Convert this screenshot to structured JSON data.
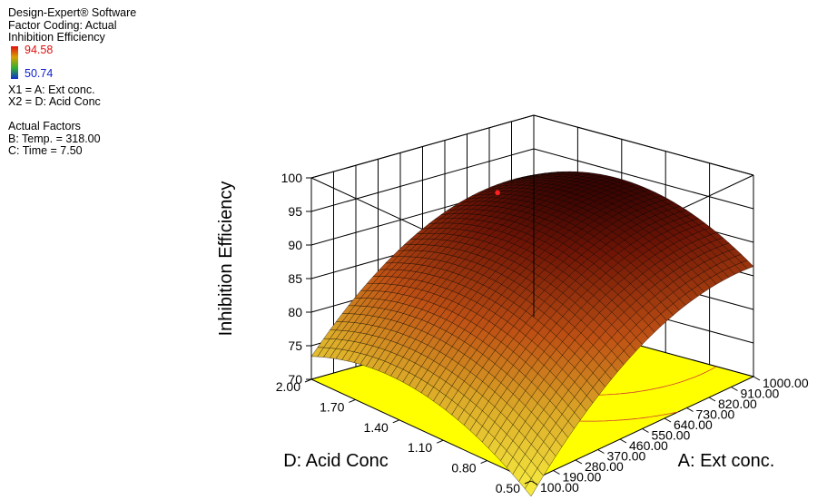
{
  "header": {
    "software": "Design-Expert® Software",
    "coding": "Factor Coding: Actual",
    "response": "Inhibition Efficiency"
  },
  "legend": {
    "max_label": "94.58",
    "min_label": "50.74",
    "colors": [
      "#e01010",
      "#d8a000",
      "#30b030",
      "#1030d0"
    ]
  },
  "factors": {
    "x1": "X1 = A: Ext conc.",
    "x2": "X2 = D: Acid Conc"
  },
  "actual": {
    "title": "Actual Factors",
    "b": "B: Temp. = 318.00",
    "c": "C: Time = 7.50"
  },
  "chart_data": {
    "type": "surface",
    "zlabel": "Inhibition Efficiency",
    "xlabel": "A: Ext conc.",
    "ylabel": "D: Acid Conc",
    "z_ticks": [
      "70",
      "75",
      "80",
      "85",
      "90",
      "95",
      "100"
    ],
    "x_ticks": [
      "100.00",
      "190.00",
      "280.00",
      "370.00",
      "460.00",
      "550.00",
      "640.00",
      "730.00",
      "820.00",
      "910.00",
      "1000.00"
    ],
    "y_ticks": [
      "0.50",
      "0.80",
      "1.10",
      "1.40",
      "1.70",
      "2.00"
    ],
    "zlim": [
      70,
      100
    ],
    "xlim": [
      100,
      1000
    ],
    "ylim": [
      0.5,
      2.0
    ],
    "grid": true,
    "floor_color": "#ffff00",
    "surface_colors": {
      "low": "#ffff40",
      "mid": "#c05010",
      "high": "#300000"
    },
    "corners": [
      {
        "x": 100,
        "y": 0.5,
        "z": 67.7
      },
      {
        "x": 1000,
        "y": 0.5,
        "z": 86.4
      },
      {
        "x": 100,
        "y": 2.0,
        "z": 73.4
      },
      {
        "x": 1000,
        "y": 2.0,
        "z": 91.1
      }
    ],
    "peak_point": {
      "z": 94.5
    },
    "contour_levels": [
      94.0,
      90.0,
      85.0
    ]
  }
}
